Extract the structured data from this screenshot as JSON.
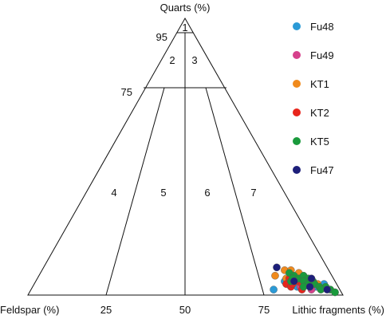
{
  "chart_data": {
    "type": "scatter",
    "subtype": "ternary",
    "title": "",
    "axes": {
      "top": "Quarts (%)",
      "left": "Feldspar (%)",
      "right": "Lithic fragments (%)"
    },
    "base_ticks": [
      "25",
      "50",
      "75"
    ],
    "side_ticks": [
      "95",
      "75"
    ],
    "zones": [
      "1",
      "2",
      "3",
      "4",
      "5",
      "6",
      "7"
    ],
    "legend_position": "top-right",
    "series": [
      {
        "name": "Fu48",
        "color": "#2b9ad6",
        "points": [
          [
            5,
            16,
            79
          ],
          [
            4,
            10,
            86
          ],
          [
            3,
            7,
            90
          ],
          [
            2,
            21,
            77
          ],
          [
            6,
            12,
            82
          ],
          [
            4,
            4,
            92
          ],
          [
            3,
            13,
            84
          ]
        ]
      },
      {
        "name": "Fu49",
        "color": "#d6418c",
        "points": [
          [
            3,
            12,
            85
          ],
          [
            2,
            9,
            89
          ],
          [
            5,
            15,
            80
          ],
          [
            4,
            8,
            88
          ],
          [
            3,
            11,
            86
          ]
        ]
      },
      {
        "name": "KT1",
        "color": "#f08a1c",
        "points": [
          [
            9,
            14,
            77
          ],
          [
            8,
            10,
            82
          ],
          [
            9,
            12,
            79
          ],
          [
            7,
            18,
            75
          ],
          [
            6,
            15,
            79
          ],
          [
            6,
            12,
            82
          ],
          [
            5,
            10,
            85
          ],
          [
            4,
            6,
            90
          ]
        ]
      },
      {
        "name": "KT2",
        "color": "#e8251c",
        "points": [
          [
            4,
            16,
            80
          ],
          [
            3,
            15,
            82
          ],
          [
            4,
            14,
            82
          ],
          [
            5,
            12,
            83
          ],
          [
            3,
            9,
            88
          ],
          [
            6,
            14,
            80
          ],
          [
            2,
            12,
            86
          ],
          [
            4,
            11,
            85
          ]
        ]
      },
      {
        "name": "KT5",
        "color": "#1a9a3c",
        "points": [
          [
            8,
            13,
            79
          ],
          [
            7,
            12,
            81
          ],
          [
            6,
            11,
            83
          ],
          [
            5,
            7,
            88
          ],
          [
            4,
            7,
            89
          ],
          [
            3,
            4,
            93
          ],
          [
            2,
            3,
            95
          ],
          [
            7,
            9,
            84
          ],
          [
            6,
            8,
            86
          ],
          [
            5,
            14,
            81
          ],
          [
            3,
            6,
            91
          ],
          [
            5,
            10,
            85
          ],
          [
            2,
            6,
            92
          ],
          [
            4,
            9,
            87
          ],
          [
            6,
            13,
            81
          ],
          [
            1,
            2,
            97
          ],
          [
            3,
            11,
            86
          ]
        ]
      },
      {
        "name": "Fu47",
        "color": "#1d1f7a",
        "points": [
          [
            10,
            16,
            74
          ],
          [
            6,
            7,
            87
          ],
          [
            3,
            9,
            88
          ],
          [
            2,
            4,
            94
          ],
          [
            5,
            13,
            82
          ]
        ]
      }
    ]
  }
}
